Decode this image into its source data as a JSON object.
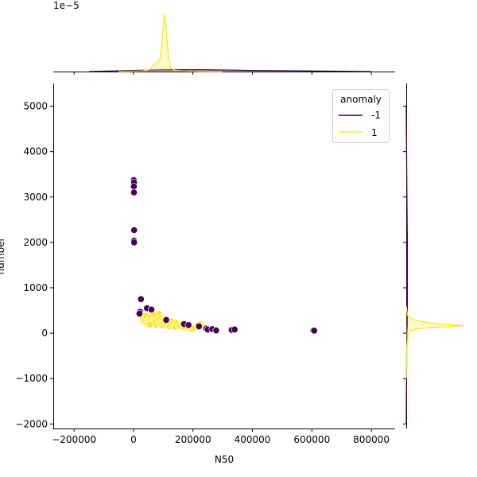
{
  "chart_data": {
    "type": "scatter",
    "xlabel": "N50",
    "ylabel": "number",
    "xlim": [
      -270000,
      880000
    ],
    "ylim": [
      -2100,
      5500
    ],
    "x_ticks": [
      -200000,
      0,
      200000,
      400000,
      600000,
      800000
    ],
    "x_tick_labels": [
      "−200000",
      "0",
      "200000",
      "400000",
      "600000",
      "800000"
    ],
    "y_ticks": [
      -2000,
      -1000,
      0,
      1000,
      2000,
      3000,
      4000,
      5000
    ],
    "y_tick_labels": [
      "−2000",
      "−1000",
      "0",
      "1000",
      "2000",
      "3000",
      "4000",
      "5000"
    ],
    "top_marginal_offset_label": "1e−5",
    "grid": false,
    "legend": {
      "title": "anomaly",
      "placement": "top-right",
      "entries": [
        {
          "label": "-1",
          "color": "#440154"
        },
        {
          "label": "1",
          "color": "#fde725"
        }
      ]
    },
    "series": [
      {
        "name": "1",
        "color": "#fde725",
        "points": [
          [
            30000,
            350
          ],
          [
            35000,
            260
          ],
          [
            38000,
            300
          ],
          [
            42000,
            380
          ],
          [
            45000,
            220
          ],
          [
            50000,
            250
          ],
          [
            55000,
            300
          ],
          [
            58000,
            350
          ],
          [
            62000,
            200
          ],
          [
            65000,
            280
          ],
          [
            70000,
            230
          ],
          [
            72000,
            320
          ],
          [
            75000,
            260
          ],
          [
            78000,
            180
          ],
          [
            82000,
            340
          ],
          [
            85000,
            420
          ],
          [
            88000,
            210
          ],
          [
            90000,
            270
          ],
          [
            92000,
            330
          ],
          [
            95000,
            180
          ],
          [
            100000,
            240
          ],
          [
            105000,
            300
          ],
          [
            108000,
            170
          ],
          [
            112000,
            220
          ],
          [
            118000,
            280
          ],
          [
            120000,
            150
          ],
          [
            125000,
            200
          ],
          [
            130000,
            260
          ],
          [
            135000,
            170
          ],
          [
            140000,
            140
          ],
          [
            145000,
            230
          ],
          [
            150000,
            180
          ],
          [
            158000,
            150
          ],
          [
            165000,
            200
          ],
          [
            172000,
            120
          ],
          [
            180000,
            140
          ],
          [
            190000,
            110
          ],
          [
            198000,
            90
          ],
          [
            205000,
            120
          ],
          [
            215000,
            160
          ],
          [
            225000,
            200
          ],
          [
            232000,
            140
          ],
          [
            55000,
            190
          ],
          [
            68000,
            410
          ],
          [
            110000,
            310
          ]
        ]
      },
      {
        "name": "-1",
        "color": "#440154",
        "points": [
          [
            1000,
            3370
          ],
          [
            1500,
            3320
          ],
          [
            1000,
            3230
          ],
          [
            1500,
            3100
          ],
          [
            2000,
            2270
          ],
          [
            1500,
            2040
          ],
          [
            2000,
            2000
          ],
          [
            25000,
            750
          ],
          [
            22000,
            470
          ],
          [
            20000,
            430
          ],
          [
            45000,
            550
          ],
          [
            60000,
            520
          ],
          [
            110000,
            290
          ],
          [
            170000,
            200
          ],
          [
            185000,
            180
          ],
          [
            220000,
            150
          ],
          [
            245000,
            100
          ],
          [
            250000,
            80
          ],
          [
            265000,
            90
          ],
          [
            278000,
            60
          ],
          [
            330000,
            70
          ],
          [
            340000,
            80
          ],
          [
            605000,
            60
          ],
          [
            608000,
            55
          ]
        ]
      }
    ],
    "marginal_x": {
      "series": [
        {
          "name": "-1",
          "color": "#440154",
          "x": [
            -150000,
            0,
            100000,
            250000,
            400000,
            600000,
            800000
          ],
          "density": [
            0.0,
            0.02,
            0.03,
            0.03,
            0.02,
            0.01,
            0.0
          ]
        },
        {
          "name": "1",
          "color": "#fde725",
          "x": [
            -50000,
            30000,
            55000,
            68000,
            78000,
            88000,
            95000,
            100000,
            104000,
            108000,
            113000,
            118000,
            125000,
            140000,
            170000,
            220000,
            300000
          ],
          "density": [
            0.0,
            0.01,
            0.04,
            0.12,
            0.15,
            0.2,
            0.45,
            0.8,
            1.0,
            0.9,
            0.55,
            0.25,
            0.07,
            0.02,
            0.01,
            0.003,
            0.0
          ]
        }
      ]
    },
    "marginal_y": {
      "series": [
        {
          "name": "-1",
          "color": "#440154",
          "y": [
            -2000,
            0,
            200,
            1000,
            2000,
            3300,
            5000
          ],
          "density": [
            0.0,
            0.01,
            0.02,
            0.02,
            0.02,
            0.01,
            0.0
          ]
        },
        {
          "name": "1",
          "color": "#fde725",
          "y": [
            -1000,
            -300,
            -100,
            0,
            50,
            100,
            140,
            170,
            200,
            250,
            300,
            400,
            600
          ],
          "density": [
            0.0,
            0.01,
            0.03,
            0.05,
            0.08,
            0.2,
            0.7,
            1.0,
            0.6,
            0.3,
            0.12,
            0.02,
            0.0
          ]
        }
      ]
    }
  }
}
